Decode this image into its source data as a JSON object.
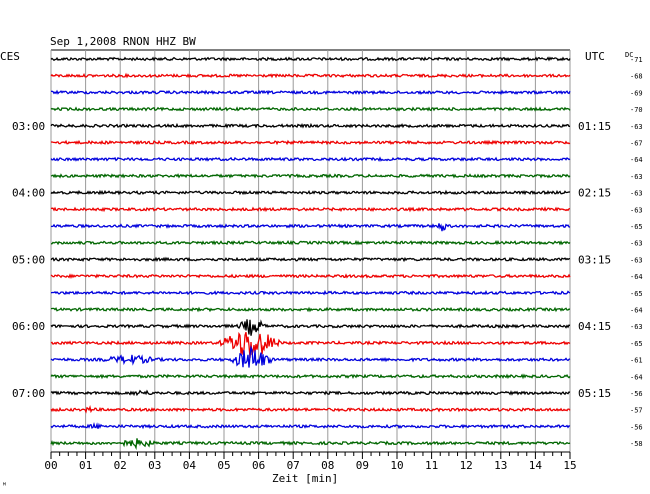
{
  "chart_data": {
    "type": "line",
    "title": "Sep 1,2008   RNON HHZ BW",
    "left_zone": "CES",
    "right_zone": "UTC",
    "dc_label": "DC",
    "xlabel": "Zeit [min]",
    "xlim": [
      0,
      15
    ],
    "x_ticks": [
      "00",
      "01",
      "02",
      "03",
      "04",
      "05",
      "06",
      "07",
      "08",
      "09",
      "10",
      "11",
      "12",
      "13",
      "14",
      "15"
    ],
    "grid": true,
    "colors": [
      "#000000",
      "#ee0000",
      "#0000dd",
      "#006600"
    ],
    "left_hour_labels": [
      {
        "row": 4,
        "text": "03:00"
      },
      {
        "row": 8,
        "text": "04:00"
      },
      {
        "row": 12,
        "text": "05:00"
      },
      {
        "row": 16,
        "text": "06:00"
      },
      {
        "row": 20,
        "text": "07:00"
      }
    ],
    "right_hour_labels": [
      {
        "row": 4,
        "text": "01:15"
      },
      {
        "row": 8,
        "text": "02:15"
      },
      {
        "row": 12,
        "text": "03:15"
      },
      {
        "row": 16,
        "text": "04:15"
      },
      {
        "row": 20,
        "text": "05:15"
      }
    ],
    "dc_values": [
      "-71",
      "-68",
      "-69",
      "-70",
      "-63",
      "-67",
      "-64",
      "-63",
      "-63",
      "-63",
      "-65",
      "-63",
      "-63",
      "-64",
      "-65",
      "-64",
      "-63",
      "-65",
      "-61",
      "-64",
      "-56",
      "-57",
      "-56",
      "-58"
    ],
    "events": [
      {
        "row": 10,
        "t": 11.3,
        "amp": 6,
        "dur": 0.25
      },
      {
        "row": 17,
        "t": 5.75,
        "amp": 18,
        "dur": 1.0
      },
      {
        "row": 16,
        "t": 5.8,
        "amp": 10,
        "dur": 0.5
      },
      {
        "row": 18,
        "t": 5.8,
        "amp": 14,
        "dur": 0.7
      },
      {
        "row": 18,
        "t": 2.3,
        "amp": 5,
        "dur": 1.2
      },
      {
        "row": 21,
        "t": 1.1,
        "amp": 3,
        "dur": 0.4
      },
      {
        "row": 22,
        "t": 1.3,
        "amp": 3,
        "dur": 0.4
      },
      {
        "row": 23,
        "t": 2.5,
        "amp": 5,
        "dur": 0.8
      },
      {
        "row": 20,
        "t": 2.6,
        "amp": 3,
        "dur": 0.6
      }
    ]
  },
  "footer": {
    "corner_mark": "ᴹ"
  }
}
